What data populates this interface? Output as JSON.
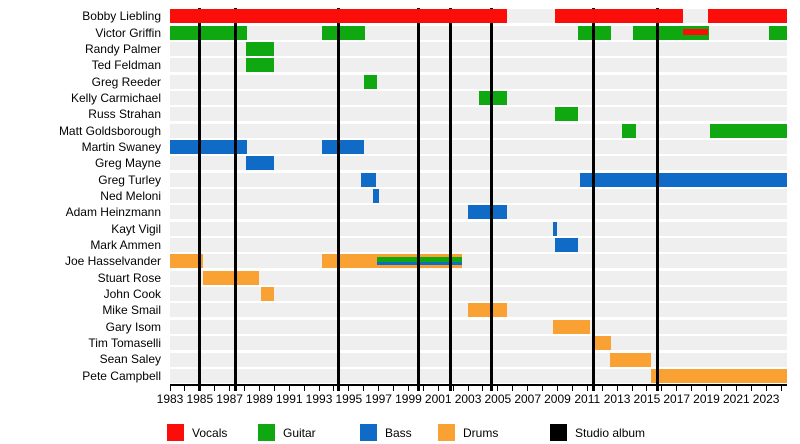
{
  "chart_data": {
    "type": "timeline",
    "title": "",
    "subject": "Band members timeline (roles by color, studio albums as vertical lines)",
    "x_axis": {
      "min": 1983,
      "max": 2024.4,
      "minor_tick_every": 1,
      "year_labels": [
        1983,
        1985,
        1987,
        1989,
        1991,
        1993,
        1995,
        1997,
        1999,
        2001,
        2003,
        2005,
        2007,
        2009,
        2011,
        2013,
        2015,
        2017,
        2019,
        2021,
        2023
      ]
    },
    "style": {
      "row_band_color": "#efefef",
      "axis_color": "#000000"
    },
    "roles": {
      "vocals": {
        "label": "Vocals",
        "color": "#fb0e0a"
      },
      "guitar": {
        "label": "Guitar",
        "color": "#10a810"
      },
      "bass": {
        "label": "Bass",
        "color": "#0f6bc5"
      },
      "drums": {
        "label": "Drums",
        "color": "#f9a132"
      },
      "album": {
        "label": "Studio album",
        "color": "#000000"
      }
    },
    "legend_order": [
      "vocals",
      "guitar",
      "bass",
      "drums",
      "album"
    ],
    "studio_album_years": [
      1985.0,
      1987.4,
      1994.3,
      1999.7,
      2001.8,
      2004.6,
      2011.4,
      2015.7
    ],
    "members": [
      {
        "name": "Bobby Liebling",
        "top_layer": true,
        "segments": [
          {
            "role": "vocals",
            "from": 1983.0,
            "till": 2005.6
          },
          {
            "role": "vocals",
            "from": 2008.8,
            "till": 2017.4
          },
          {
            "role": "vocals",
            "from": 2019.1,
            "till": 2024.4
          }
        ]
      },
      {
        "name": "Victor Griffin",
        "segments": [
          {
            "role": "guitar",
            "from": 1983.0,
            "till": 1988.2
          },
          {
            "role": "guitar",
            "from": 1993.2,
            "till": 1996.1
          },
          {
            "role": "guitar",
            "from": 2010.4,
            "till": 2012.6
          },
          {
            "role": "guitar",
            "from": 2014.1,
            "till": 2019.2
          },
          {
            "role": "vocals",
            "from": 2017.4,
            "till": 2019.1,
            "size": "mid"
          },
          {
            "role": "guitar",
            "from": 2023.2,
            "till": 2024.4
          }
        ]
      },
      {
        "name": "Randy Palmer",
        "segments": [
          {
            "role": "guitar",
            "from": 1988.1,
            "till": 1990.0
          }
        ]
      },
      {
        "name": "Ted Feldman",
        "segments": [
          {
            "role": "guitar",
            "from": 1988.1,
            "till": 1990.0
          }
        ]
      },
      {
        "name": "Greg Reeder",
        "segments": [
          {
            "role": "guitar",
            "from": 1996.0,
            "till": 1996.9
          }
        ]
      },
      {
        "name": "Kelly Carmichael",
        "segments": [
          {
            "role": "guitar",
            "from": 2003.7,
            "till": 2005.6
          }
        ]
      },
      {
        "name": "Russ Strahan",
        "segments": [
          {
            "role": "guitar",
            "from": 2008.8,
            "till": 2010.4
          }
        ]
      },
      {
        "name": "Matt Goldsborough",
        "segments": [
          {
            "role": "guitar",
            "from": 2013.3,
            "till": 2014.3
          },
          {
            "role": "guitar",
            "from": 2019.2,
            "till": 2024.4
          }
        ]
      },
      {
        "name": "Martin Swaney",
        "segments": [
          {
            "role": "bass",
            "from": 1983.0,
            "till": 1988.2
          },
          {
            "role": "bass",
            "from": 1993.2,
            "till": 1996.0
          }
        ]
      },
      {
        "name": "Greg Mayne",
        "segments": [
          {
            "role": "bass",
            "from": 1988.1,
            "till": 1990.0
          }
        ]
      },
      {
        "name": "Greg Turley",
        "segments": [
          {
            "role": "bass",
            "from": 1995.8,
            "till": 1996.8
          },
          {
            "role": "bass",
            "from": 2010.5,
            "till": 2024.4
          }
        ]
      },
      {
        "name": "Ned Meloni",
        "segments": [
          {
            "role": "bass",
            "from": 1996.6,
            "till": 1997.0
          }
        ]
      },
      {
        "name": "Adam Heinzmann",
        "segments": [
          {
            "role": "bass",
            "from": 2003.0,
            "till": 2005.6
          }
        ]
      },
      {
        "name": "Kayt Vigil",
        "segments": [
          {
            "role": "bass",
            "from": 2008.7,
            "till": 2009.0
          }
        ]
      },
      {
        "name": "Mark Ammen",
        "segments": [
          {
            "role": "bass",
            "from": 2008.8,
            "till": 2010.4
          }
        ]
      },
      {
        "name": "Joe Hasselvander",
        "segments": [
          {
            "role": "drums",
            "from": 1983.0,
            "till": 1985.2
          },
          {
            "role": "drums",
            "from": 1993.2,
            "till": 2002.6
          },
          {
            "role": "guitar",
            "from": 1996.9,
            "till": 2002.6,
            "size": "mid"
          },
          {
            "role": "bass",
            "from": 1996.9,
            "till": 2002.6,
            "size": "thin"
          }
        ]
      },
      {
        "name": "Stuart Rose",
        "segments": [
          {
            "role": "drums",
            "from": 1985.2,
            "till": 1989.0
          }
        ]
      },
      {
        "name": "John Cook",
        "segments": [
          {
            "role": "drums",
            "from": 1989.1,
            "till": 1990.0
          }
        ]
      },
      {
        "name": "Mike Smail",
        "segments": [
          {
            "role": "drums",
            "from": 2003.0,
            "till": 2005.6
          }
        ]
      },
      {
        "name": "Gary Isom",
        "segments": [
          {
            "role": "drums",
            "from": 2008.7,
            "till": 2011.2
          }
        ]
      },
      {
        "name": "Tim Tomaselli",
        "segments": [
          {
            "role": "drums",
            "from": 2011.3,
            "till": 2012.6
          }
        ]
      },
      {
        "name": "Sean Saley",
        "segments": [
          {
            "role": "drums",
            "from": 2012.5,
            "till": 2015.3
          }
        ]
      },
      {
        "name": "Pete Campbell",
        "segments": [
          {
            "role": "drums",
            "from": 2015.3,
            "till": 2024.4
          }
        ]
      }
    ]
  }
}
